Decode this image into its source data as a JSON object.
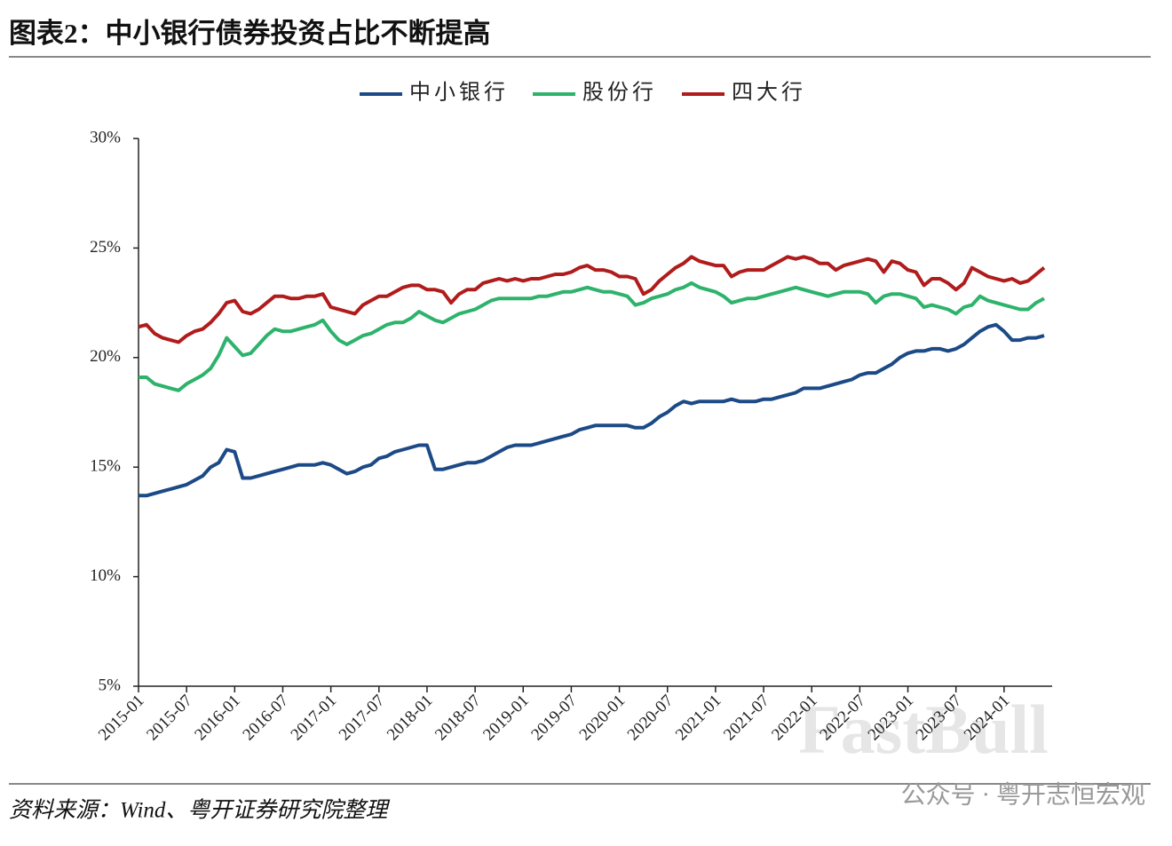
{
  "chart_data": {
    "type": "line",
    "title": "图表2：中小银行债券投资占比不断提高",
    "source": "资料来源：Wind、粤开证券研究院整理",
    "watermark": "FastBull",
    "watermark_2": "公众号 · 粤开志恒宏观",
    "categories": [
      "2015-01",
      null,
      null,
      null,
      null,
      null,
      "2015-07",
      null,
      null,
      null,
      null,
      null,
      "2016-01",
      null,
      null,
      null,
      null,
      null,
      "2016-07",
      null,
      null,
      null,
      null,
      null,
      "2017-01",
      null,
      null,
      null,
      null,
      null,
      "2017-07",
      null,
      null,
      null,
      null,
      null,
      "2018-01",
      null,
      null,
      null,
      null,
      null,
      "2018-07",
      null,
      null,
      null,
      null,
      null,
      "2019-01",
      null,
      null,
      null,
      null,
      null,
      "2019-07",
      null,
      null,
      null,
      null,
      null,
      "2020-01",
      null,
      null,
      null,
      null,
      null,
      "2020-07",
      null,
      null,
      null,
      null,
      null,
      "2021-01",
      null,
      null,
      null,
      null,
      null,
      "2021-07",
      null,
      null,
      null,
      null,
      null,
      "2022-01",
      null,
      null,
      null,
      null,
      null,
      "2022-07",
      null,
      null,
      null,
      null,
      null,
      "2023-01",
      null,
      null,
      null,
      null,
      null,
      "2023-07",
      null,
      null,
      null,
      null,
      null,
      "2024-01",
      null,
      null,
      null,
      null,
      null
    ],
    "series": [
      {
        "name": "中小银行",
        "color": "#1c4a86",
        "values": [
          13.7,
          13.7,
          13.8,
          13.9,
          14.0,
          14.1,
          14.2,
          14.4,
          14.6,
          15.0,
          15.2,
          15.8,
          15.7,
          14.5,
          14.5,
          14.6,
          14.7,
          14.8,
          14.9,
          15.0,
          15.1,
          15.1,
          15.1,
          15.2,
          15.1,
          14.9,
          14.7,
          14.8,
          15.0,
          15.1,
          15.4,
          15.5,
          15.7,
          15.8,
          15.9,
          16.0,
          16.0,
          14.9,
          14.9,
          15.0,
          15.1,
          15.2,
          15.2,
          15.3,
          15.5,
          15.7,
          15.9,
          16.0,
          16.0,
          16.0,
          16.1,
          16.2,
          16.3,
          16.4,
          16.5,
          16.7,
          16.8,
          16.9,
          16.9,
          16.9,
          16.9,
          16.9,
          16.8,
          16.8,
          17.0,
          17.3,
          17.5,
          17.8,
          18.0,
          17.9,
          18.0,
          18.0,
          18.0,
          18.0,
          18.1,
          18.0,
          18.0,
          18.0,
          18.1,
          18.1,
          18.2,
          18.3,
          18.4,
          18.6,
          18.6,
          18.6,
          18.7,
          18.8,
          18.9,
          19.0,
          19.2,
          19.3,
          19.3,
          19.5,
          19.7,
          20.0,
          20.2,
          20.3,
          20.3,
          20.4,
          20.4,
          20.3,
          20.4,
          20.6,
          20.9,
          21.2,
          21.4,
          21.5,
          21.2,
          20.8,
          20.8,
          20.9,
          20.9,
          21.0
        ]
      },
      {
        "name": "股份行",
        "color": "#2db36b",
        "values": [
          19.1,
          19.1,
          18.8,
          18.7,
          18.6,
          18.5,
          18.8,
          19.0,
          19.2,
          19.5,
          20.1,
          20.9,
          20.5,
          20.1,
          20.2,
          20.6,
          21.0,
          21.3,
          21.2,
          21.2,
          21.3,
          21.4,
          21.5,
          21.7,
          21.2,
          20.8,
          20.6,
          20.8,
          21.0,
          21.1,
          21.3,
          21.5,
          21.6,
          21.6,
          21.8,
          22.1,
          21.9,
          21.7,
          21.6,
          21.8,
          22.0,
          22.1,
          22.2,
          22.4,
          22.6,
          22.7,
          22.7,
          22.7,
          22.7,
          22.7,
          22.8,
          22.8,
          22.9,
          23.0,
          23.0,
          23.1,
          23.2,
          23.1,
          23.0,
          23.0,
          22.9,
          22.8,
          22.4,
          22.5,
          22.7,
          22.8,
          22.9,
          23.1,
          23.2,
          23.4,
          23.2,
          23.1,
          23.0,
          22.8,
          22.5,
          22.6,
          22.7,
          22.7,
          22.8,
          22.9,
          23.0,
          23.1,
          23.2,
          23.1,
          23.0,
          22.9,
          22.8,
          22.9,
          23.0,
          23.0,
          23.0,
          22.9,
          22.5,
          22.8,
          22.9,
          22.9,
          22.8,
          22.7,
          22.3,
          22.4,
          22.3,
          22.2,
          22.0,
          22.3,
          22.4,
          22.8,
          22.6,
          22.5,
          22.4,
          22.3,
          22.2,
          22.2,
          22.5,
          22.7
        ]
      },
      {
        "name": "四大行",
        "color": "#b01c1c",
        "values": [
          21.4,
          21.5,
          21.1,
          20.9,
          20.8,
          20.7,
          21.0,
          21.2,
          21.3,
          21.6,
          22.0,
          22.5,
          22.6,
          22.1,
          22.0,
          22.2,
          22.5,
          22.8,
          22.8,
          22.7,
          22.7,
          22.8,
          22.8,
          22.9,
          22.3,
          22.2,
          22.1,
          22.0,
          22.4,
          22.6,
          22.8,
          22.8,
          23.0,
          23.2,
          23.3,
          23.3,
          23.1,
          23.1,
          23.0,
          22.5,
          22.9,
          23.1,
          23.1,
          23.4,
          23.5,
          23.6,
          23.5,
          23.6,
          23.5,
          23.6,
          23.6,
          23.7,
          23.8,
          23.8,
          23.9,
          24.1,
          24.2,
          24.0,
          24.0,
          23.9,
          23.7,
          23.7,
          23.6,
          22.9,
          23.1,
          23.5,
          23.8,
          24.1,
          24.3,
          24.6,
          24.4,
          24.3,
          24.2,
          24.2,
          23.7,
          23.9,
          24.0,
          24.0,
          24.0,
          24.2,
          24.4,
          24.6,
          24.5,
          24.6,
          24.5,
          24.3,
          24.3,
          24.0,
          24.2,
          24.3,
          24.4,
          24.5,
          24.4,
          23.9,
          24.4,
          24.3,
          24.0,
          23.9,
          23.3,
          23.6,
          23.6,
          23.4,
          23.1,
          23.4,
          24.1,
          23.9,
          23.7,
          23.6,
          23.5,
          23.6,
          23.4,
          23.5,
          23.8,
          24.1
        ]
      }
    ],
    "ylim": [
      5,
      30
    ],
    "yticks": [
      {
        "value": 5,
        "label": "5%"
      },
      {
        "value": 10,
        "label": "10%"
      },
      {
        "value": 15,
        "label": "15%"
      },
      {
        "value": 20,
        "label": "20%"
      },
      {
        "value": 25,
        "label": "25%"
      },
      {
        "value": 30,
        "label": "30%"
      }
    ],
    "legend": "top",
    "grid": false
  }
}
